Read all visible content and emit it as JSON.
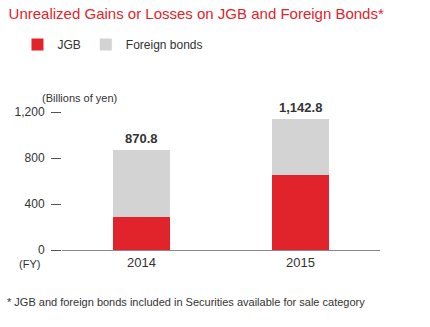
{
  "chart_data": {
    "type": "bar",
    "title": "Unrealized Gains or Losses on JGB and Foreign Bonds*",
    "ylabel": "(Billions of yen)",
    "xlabel": "(FY)",
    "footnote": "* JGB and foreign bonds included in Securities available for sale category",
    "categories": [
      "2014",
      "2015"
    ],
    "series": [
      {
        "name": "JGB",
        "color": "#e1242b",
        "values": [
          285,
          650
        ]
      },
      {
        "name": "Foreign bonds",
        "color": "#d3d3d3",
        "values": [
          585.8,
          492.8
        ]
      }
    ],
    "totals": [
      870.8,
      1142.8
    ],
    "total_labels": [
      "870.8",
      "1,142.8"
    ],
    "stacked": true,
    "legend": "top-left",
    "grid": false,
    "ylim": [
      0,
      1200
    ],
    "yticks": [
      0,
      400,
      800,
      {
        "value": 1200,
        "label": "1,200"
      }
    ]
  }
}
